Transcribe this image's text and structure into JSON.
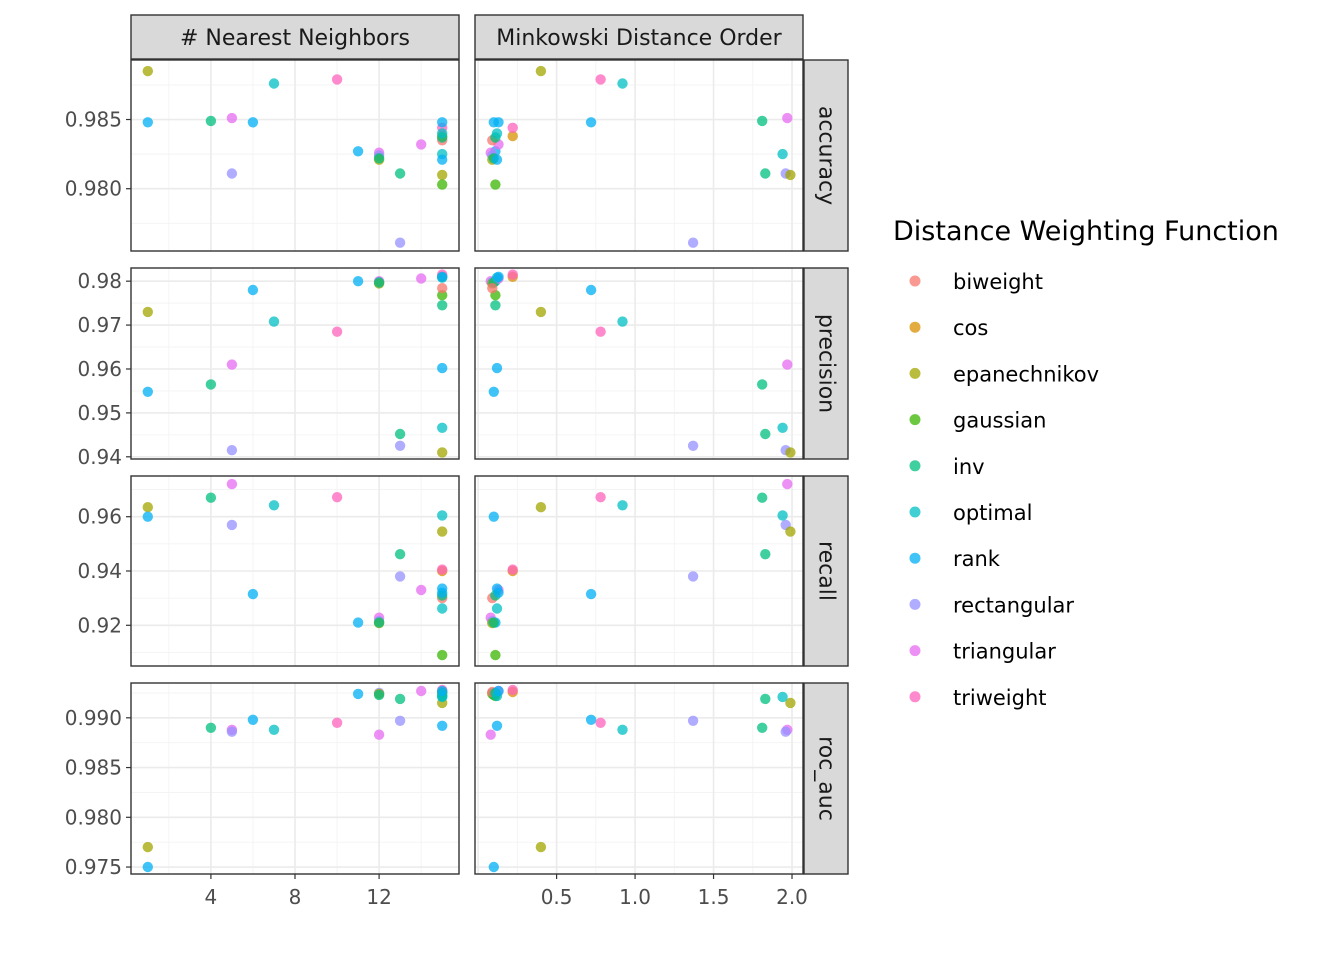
{
  "chart_data": {
    "type": "scatter",
    "facet_columns": [
      "# Nearest Neighbors",
      "Minkowski Distance Order"
    ],
    "facet_rows": [
      "accuracy",
      "precision",
      "recall",
      "roc_auc"
    ],
    "x_ticks": {
      "# Nearest Neighbors": [
        4,
        8,
        12
      ],
      "Minkowski Distance Order": [
        0.5,
        1.0,
        1.5,
        2.0
      ]
    },
    "x_tick_labels": {
      "# Nearest Neighbors": [
        "4",
        "8",
        "12"
      ],
      "Minkowski Distance Order": [
        "0.5",
        "1.0",
        "1.5",
        "2.0"
      ]
    },
    "x_range": {
      "# Nearest Neighbors": [
        0.2,
        15.8
      ],
      "Minkowski Distance Order": [
        -0.02,
        2.07
      ]
    },
    "y_ticks": {
      "accuracy": [
        0.98,
        0.985
      ],
      "precision": [
        0.94,
        0.95,
        0.96,
        0.97,
        0.98
      ],
      "recall": [
        0.92,
        0.94,
        0.96
      ],
      "roc_auc": [
        0.975,
        0.98,
        0.985,
        0.99
      ]
    },
    "y_tick_labels": {
      "accuracy": [
        "0.980",
        "0.985"
      ],
      "precision": [
        "0.94",
        "0.95",
        "0.96",
        "0.97",
        "0.98"
      ],
      "recall": [
        "0.92",
        "0.94",
        "0.96"
      ],
      "roc_auc": [
        "0.975",
        "0.980",
        "0.985",
        "0.990"
      ]
    },
    "y_range": {
      "accuracy": [
        0.9755,
        0.9893
      ],
      "precision": [
        0.9395,
        0.983
      ],
      "recall": [
        0.905,
        0.975
      ],
      "roc_auc": [
        0.9743,
        0.9935
      ]
    },
    "legend": {
      "title": "Distance Weighting Function",
      "placement": "right",
      "entries": [
        "biweight",
        "cos",
        "epanechnikov",
        "gaussian",
        "inv",
        "optimal",
        "rank",
        "rectangular",
        "triangular",
        "triweight"
      ]
    },
    "colors": {
      "biweight": "#F8766D",
      "cos": "#D89000",
      "epanechnikov": "#A3A500",
      "gaussian": "#39B600",
      "inv": "#00BF7D",
      "optimal": "#00BFC4",
      "rank": "#00B0F6",
      "rectangular": "#9590FF",
      "triangular": "#E76BF3",
      "triweight": "#FF62BC"
    },
    "points": [
      {
        "series": "epanechnikov",
        "neighbors": 1,
        "order": 0.4,
        "accuracy": 0.9885,
        "precision": 0.973,
        "recall": 0.9635,
        "roc_auc": 0.977
      },
      {
        "series": "rank",
        "neighbors": 1,
        "order": 0.1,
        "accuracy": 0.9848,
        "precision": 0.9548,
        "recall": 0.96,
        "roc_auc": 0.975
      },
      {
        "series": "inv",
        "neighbors": 4,
        "order": 1.81,
        "accuracy": 0.9849,
        "precision": 0.9565,
        "recall": 0.967,
        "roc_auc": 0.989
      },
      {
        "series": "triangular",
        "neighbors": 5,
        "order": 1.97,
        "accuracy": 0.9851,
        "precision": 0.961,
        "recall": 0.972,
        "roc_auc": 0.9888
      },
      {
        "series": "rectangular",
        "neighbors": 5,
        "order": 1.96,
        "accuracy": 0.9811,
        "precision": 0.9415,
        "recall": 0.957,
        "roc_auc": 0.9886
      },
      {
        "series": "rank",
        "neighbors": 6,
        "order": 0.72,
        "accuracy": 0.9848,
        "precision": 0.978,
        "recall": 0.9315,
        "roc_auc": 0.9898
      },
      {
        "series": "optimal",
        "neighbors": 7,
        "order": 0.92,
        "accuracy": 0.9876,
        "precision": 0.9708,
        "recall": 0.9642,
        "roc_auc": 0.9888
      },
      {
        "series": "triweight",
        "neighbors": 10,
        "order": 0.78,
        "accuracy": 0.9879,
        "precision": 0.9685,
        "recall": 0.9672,
        "roc_auc": 0.9895
      },
      {
        "series": "rank",
        "neighbors": 11,
        "order": 0.11,
        "accuracy": 0.9827,
        "precision": 0.98,
        "recall": 0.921,
        "roc_auc": 0.9924
      },
      {
        "series": "triangular",
        "neighbors": 12,
        "order": 0.08,
        "accuracy": 0.9826,
        "precision": 0.98,
        "recall": 0.9228,
        "roc_auc": 0.9883
      },
      {
        "series": "rectangular",
        "neighbors": 12,
        "order": 0.09,
        "accuracy": 0.9824,
        "precision": 0.9798,
        "recall": 0.9215,
        "roc_auc": 0.9925
      },
      {
        "series": "epanechnikov",
        "neighbors": 12,
        "order": 0.09,
        "accuracy": 0.9821,
        "precision": 0.9795,
        "recall": 0.9208,
        "roc_auc": 0.9924
      },
      {
        "series": "inv",
        "neighbors": 12,
        "order": 0.1,
        "accuracy": 0.9822,
        "precision": 0.9797,
        "recall": 0.921,
        "roc_auc": 0.9923
      },
      {
        "series": "inv",
        "neighbors": 13,
        "order": 1.83,
        "accuracy": 0.9811,
        "precision": 0.9452,
        "recall": 0.9462,
        "roc_auc": 0.9919
      },
      {
        "series": "rectangular",
        "neighbors": 13,
        "order": 1.37,
        "accuracy": 0.9761,
        "precision": 0.9425,
        "recall": 0.938,
        "roc_auc": 0.9897
      },
      {
        "series": "triangular",
        "neighbors": 14,
        "order": 0.13,
        "accuracy": 0.9832,
        "precision": 0.9806,
        "recall": 0.933,
        "roc_auc": 0.9927
      },
      {
        "series": "epanechnikov",
        "neighbors": 15,
        "order": 1.99,
        "accuracy": 0.981,
        "precision": 0.941,
        "recall": 0.9545,
        "roc_auc": 0.9915
      },
      {
        "series": "gaussian",
        "neighbors": 15,
        "order": 0.11,
        "accuracy": 0.9803,
        "precision": 0.9768,
        "recall": 0.909,
        "roc_auc": 0.9922
      },
      {
        "series": "optimal",
        "neighbors": 15,
        "order": 1.94,
        "accuracy": 0.9825,
        "precision": 0.9466,
        "recall": 0.9605,
        "roc_auc": 0.9921
      },
      {
        "series": "rank",
        "neighbors": 15,
        "order": 0.12,
        "accuracy": 0.9821,
        "precision": 0.9602,
        "recall": 0.9335,
        "roc_auc": 0.9892
      },
      {
        "series": "biweight",
        "neighbors": 15,
        "order": 0.09,
        "accuracy": 0.9835,
        "precision": 0.9784,
        "recall": 0.93,
        "roc_auc": 0.9926
      },
      {
        "series": "cos",
        "neighbors": 15,
        "order": 0.22,
        "accuracy": 0.9838,
        "precision": 0.981,
        "recall": 0.94,
        "roc_auc": 0.9926
      },
      {
        "series": "triweight",
        "neighbors": 15,
        "order": 0.22,
        "accuracy": 0.9844,
        "precision": 0.9815,
        "recall": 0.9405,
        "roc_auc": 0.9928
      },
      {
        "series": "inv",
        "neighbors": 15,
        "order": 0.11,
        "accuracy": 0.9837,
        "precision": 0.9745,
        "recall": 0.931,
        "roc_auc": 0.9925
      },
      {
        "series": "optimal",
        "neighbors": 15,
        "order": 0.12,
        "accuracy": 0.984,
        "precision": 0.9808,
        "recall": 0.9262,
        "roc_auc": 0.9922
      },
      {
        "series": "rank",
        "neighbors": 15,
        "order": 0.13,
        "accuracy": 0.9848,
        "precision": 0.981,
        "recall": 0.932,
        "roc_auc": 0.9927
      }
    ]
  }
}
